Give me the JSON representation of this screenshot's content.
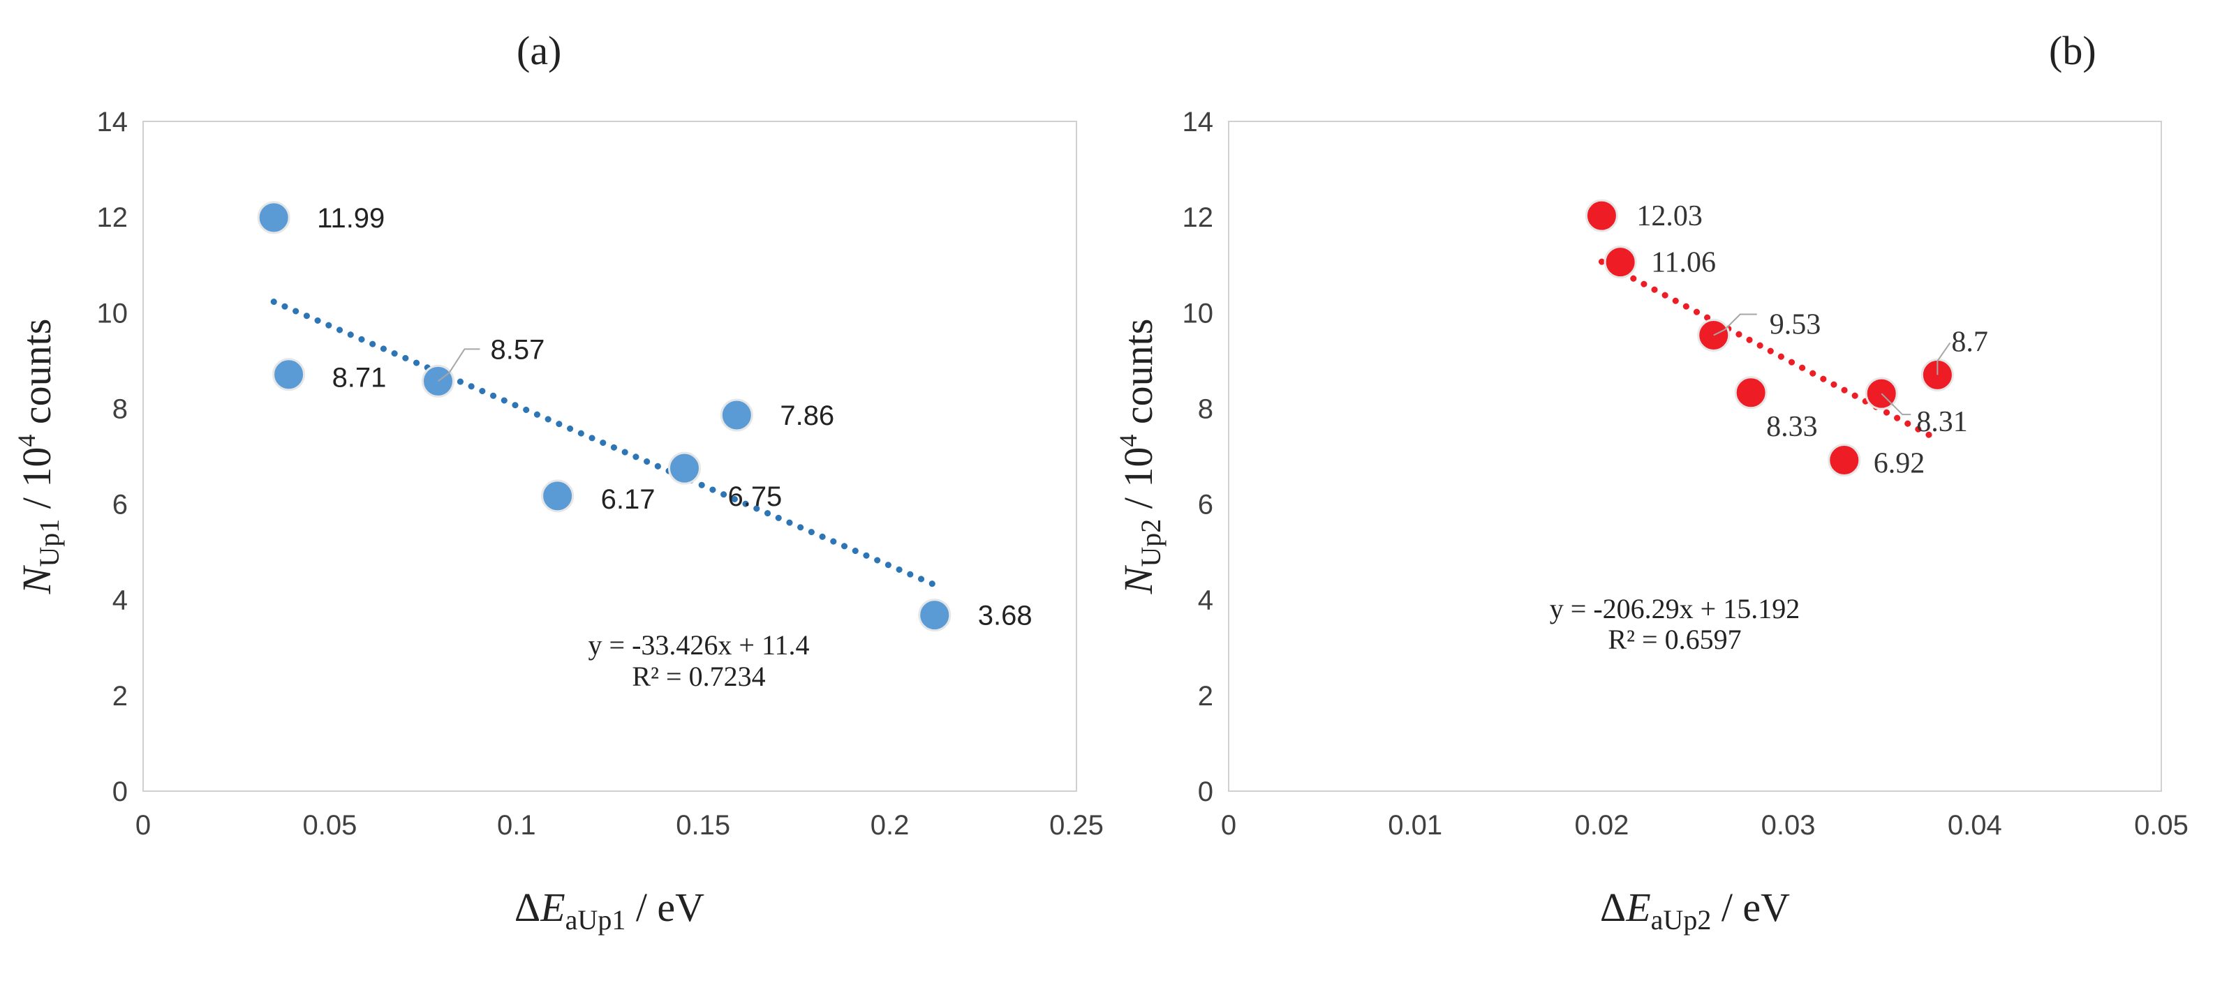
{
  "chart_data": [
    {
      "type": "scatter",
      "panel_label": "(a)",
      "xlabel": {
        "prefix": "ΔE",
        "sub": "aUp1",
        "suffix": " / eV"
      },
      "ylabel": {
        "prefix": "N",
        "sub": "Up1",
        "mid": " / 10",
        "sup": "4",
        "suffix": " counts"
      },
      "xlim": [
        0,
        0.25
      ],
      "ylim": [
        0,
        14
      ],
      "xticks": [
        0,
        0.05,
        0.1,
        0.15,
        0.2,
        0.25
      ],
      "xtick_labels": [
        "0",
        "0.05",
        "0.1",
        "0.15",
        "0.2",
        "0.25"
      ],
      "yticks": [
        0,
        2,
        4,
        6,
        8,
        10,
        12,
        14
      ],
      "ytick_labels": [
        "0",
        "2",
        "4",
        "6",
        "8",
        "10",
        "12",
        "14"
      ],
      "marker_color": "#5b9bd5",
      "trend_color": "#2e75b6",
      "points": [
        {
          "x": 0.035,
          "y": 11.99,
          "label": "11.99"
        },
        {
          "x": 0.039,
          "y": 8.71,
          "label": "8.71"
        },
        {
          "x": 0.079,
          "y": 8.57,
          "label": "8.57"
        },
        {
          "x": 0.111,
          "y": 6.17,
          "label": "6.17"
        },
        {
          "x": 0.145,
          "y": 6.75,
          "label": "6.75"
        },
        {
          "x": 0.159,
          "y": 7.86,
          "label": "7.86"
        },
        {
          "x": 0.212,
          "y": 3.68,
          "label": "3.68"
        }
      ],
      "trendline": {
        "slope": -33.426,
        "intercept": 11.4,
        "x_range": [
          0.035,
          0.212
        ]
      },
      "equation": "y = -33.426x + 11.4",
      "r2": "R² = 0.7234"
    },
    {
      "type": "scatter",
      "panel_label": "(b)",
      "xlabel": {
        "prefix": "ΔE",
        "sub": "aUp2",
        "suffix": " / eV"
      },
      "ylabel": {
        "prefix": "N",
        "sub": "Up2",
        "mid": " / 10",
        "sup": "4",
        "suffix": " counts"
      },
      "xlim": [
        0,
        0.05
      ],
      "ylim": [
        0,
        14
      ],
      "xticks": [
        0,
        0.01,
        0.02,
        0.03,
        0.04,
        0.05
      ],
      "xtick_labels": [
        "0",
        "0.01",
        "0.02",
        "0.03",
        "0.04",
        "0.05"
      ],
      "yticks": [
        0,
        2,
        4,
        6,
        8,
        10,
        12,
        14
      ],
      "ytick_labels": [
        "0",
        "2",
        "4",
        "6",
        "8",
        "10",
        "12",
        "14"
      ],
      "marker_color": "#ee1c25",
      "trend_color": "#ee1c25",
      "points": [
        {
          "x": 0.02,
          "y": 12.03,
          "label": "12.03"
        },
        {
          "x": 0.021,
          "y": 11.06,
          "label": "11.06"
        },
        {
          "x": 0.026,
          "y": 9.53,
          "label": "9.53"
        },
        {
          "x": 0.028,
          "y": 8.33,
          "label": "8.33"
        },
        {
          "x": 0.033,
          "y": 6.92,
          "label": "6.92"
        },
        {
          "x": 0.035,
          "y": 8.31,
          "label": "8.31"
        },
        {
          "x": 0.038,
          "y": 8.7,
          "label": "8.7"
        }
      ],
      "trendline": {
        "slope": -206.29,
        "intercept": 15.192,
        "x_range": [
          0.02,
          0.038
        ]
      },
      "equation": "y = -206.29x + 15.192",
      "r2": "R² = 0.6597"
    }
  ]
}
